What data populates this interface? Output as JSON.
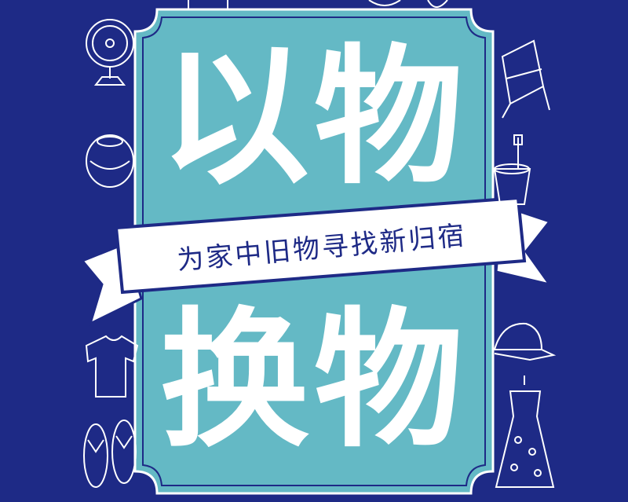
{
  "poster": {
    "title_top": "以物",
    "title_bottom": "换物",
    "ribbon": "为家中旧物寻找新归宿"
  },
  "colors": {
    "background": "#1e2a86",
    "panel": "#64b9c5",
    "ribbon": "#ffffff",
    "text": "#ffffff",
    "ribbon_text": "#1e2a86"
  },
  "icons": [
    "fan-icon",
    "chair-icon",
    "pot-icon",
    "bucket-spade-icon",
    "shirt-icon",
    "cap-icon",
    "dress-icon",
    "flipflops-icon"
  ]
}
